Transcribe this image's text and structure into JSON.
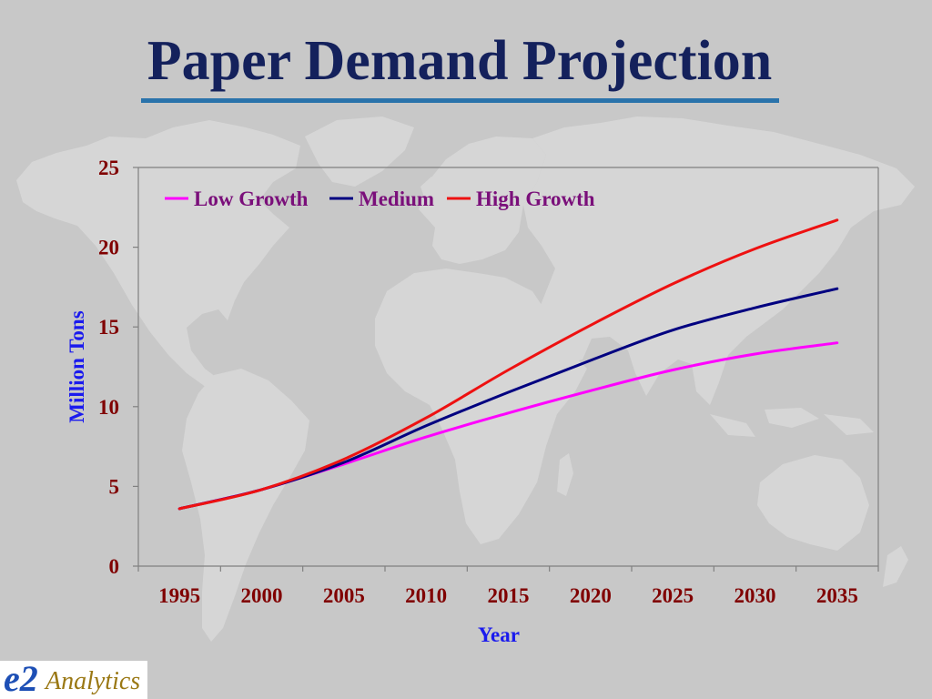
{
  "theme": {
    "background": "#c8c8c8",
    "map": "#d6d6d6",
    "title": "#14215c",
    "title_rule": "#2a73ab"
  },
  "chart_data": {
    "type": "line",
    "title": "Paper Demand Projection",
    "xlabel": "Year",
    "ylabel": "Million Tons",
    "categories": [
      "1995",
      "2000",
      "2005",
      "2010",
      "2015",
      "2020",
      "2025",
      "2030",
      "2035"
    ],
    "ylim": [
      0,
      25
    ],
    "yticks": [
      0,
      5,
      10,
      15,
      20,
      25
    ],
    "grid": false,
    "smooth": true,
    "legend": "top-left",
    "series": [
      {
        "name": "Low Growth",
        "color": "#ff00ff",
        "values": [
          3.6,
          4.8,
          6.4,
          8.1,
          9.6,
          11.0,
          12.3,
          13.3,
          14.0
        ]
      },
      {
        "name": "Medium",
        "color": "#000080",
        "values": [
          3.6,
          4.8,
          6.5,
          8.8,
          10.9,
          12.9,
          14.8,
          16.2,
          17.4
        ]
      },
      {
        "name": "High Growth",
        "color": "#ee1111",
        "values": [
          3.6,
          4.8,
          6.7,
          9.3,
          12.3,
          15.1,
          17.7,
          19.9,
          21.7
        ]
      }
    ]
  },
  "logo": {
    "mark": "e2",
    "text": "Analytics"
  }
}
